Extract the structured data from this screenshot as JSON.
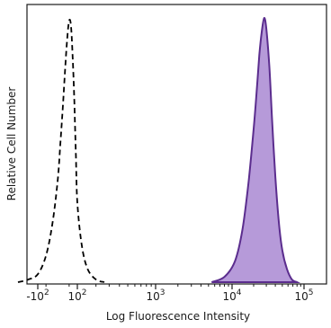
{
  "chart_data": {
    "type": "area",
    "xlabel": "Log Fluorescence Intensity",
    "ylabel": "Relative Cell Number",
    "x_scale": "biexponential",
    "x_ticks": [
      {
        "base": "-10",
        "exp": "2",
        "value": -100
      },
      {
        "base": "10",
        "exp": "2",
        "value": 100
      },
      {
        "base": "10",
        "exp": "3",
        "value": 1000
      },
      {
        "base": "10",
        "exp": "4",
        "value": 10000
      },
      {
        "base": "10",
        "exp": "5",
        "value": 100000
      }
    ],
    "y_ticks_shown": false,
    "grid": false,
    "series": [
      {
        "style": "dashed-outline",
        "color": "#000000",
        "x": [
          -300,
          -180,
          -100,
          -50,
          -20,
          0,
          10,
          20,
          30,
          40,
          50,
          60,
          70,
          80,
          90,
          100,
          120,
          150,
          200,
          260
        ],
        "y": [
          0,
          0.01,
          0.03,
          0.1,
          0.22,
          0.38,
          0.52,
          0.66,
          0.8,
          0.92,
          0.99,
          0.97,
          0.85,
          0.68,
          0.48,
          0.3,
          0.14,
          0.05,
          0.01,
          0
        ]
      },
      {
        "style": "filled",
        "color": "#5b2d8e",
        "fill": "#b69ad9",
        "x": [
          5500,
          8000,
          11000,
          14000,
          17000,
          20000,
          22000,
          24000,
          26000,
          28000,
          30000,
          33000,
          36000,
          40000,
          45000,
          50000,
          58000,
          68000,
          80000
        ],
        "y": [
          0,
          0.02,
          0.08,
          0.2,
          0.38,
          0.58,
          0.72,
          0.86,
          0.95,
          1.0,
          0.96,
          0.82,
          0.62,
          0.4,
          0.22,
          0.12,
          0.05,
          0.01,
          0
        ]
      }
    ]
  }
}
